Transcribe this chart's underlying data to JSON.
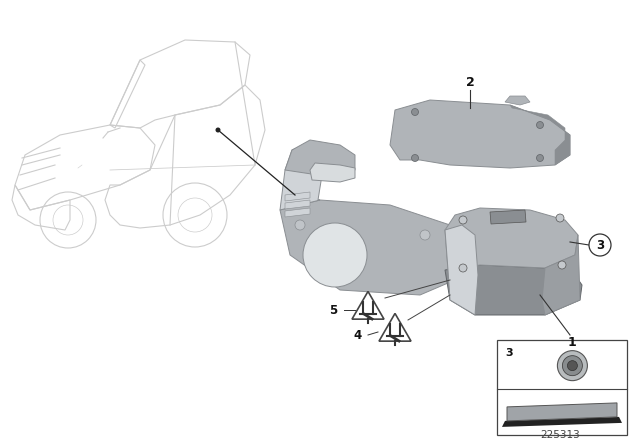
{
  "bg_color": "#ffffff",
  "part_number": "225313",
  "car_color": "#cccccc",
  "parts_gray": "#b0b4b8",
  "parts_dark": "#8a8e92",
  "parts_light": "#d0d4d8",
  "line_color": "#555555",
  "label_color": "#111111"
}
